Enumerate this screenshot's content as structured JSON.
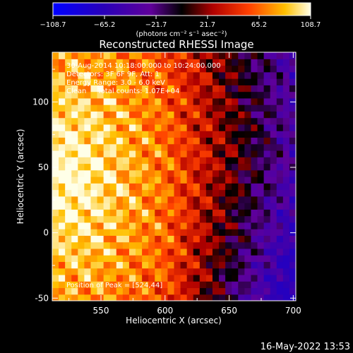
{
  "chart_data": {
    "type": "heatmap",
    "title": "Reconstructed RHESSI Image",
    "xlabel": "Heliocentric X (arcsec)",
    "ylabel": "Heliocentric Y (arcsec)",
    "xlim": [
      512,
      702
    ],
    "ylim": [
      -52,
      138
    ],
    "x_ticks": [
      550,
      600,
      650,
      700
    ],
    "y_ticks": [
      -50,
      0,
      50,
      100
    ],
    "colorbar": {
      "min": -108.7,
      "max": 108.7,
      "tick_values": [
        -108.7,
        -65.2,
        -21.7,
        21.7,
        65.2,
        108.7
      ],
      "tick_labels": [
        "−108.7",
        "−65.2",
        "−21.7",
        "21.7",
        "65.2",
        "108.7"
      ],
      "units": "(photons cm⁻² s⁻¹ asec⁻²)"
    },
    "annotations": [
      "30-Aug-2014 10:18:00.000 to 10:24:00.000",
      "Detectors: 3F 6F 9F, Att: 1",
      "Energy Range: 3.0 - 6.0 keV",
      "Clean     Total counts: 1.07E+04"
    ],
    "peak_label": "Position of Peak = [524,44]",
    "peak": {
      "x": 524,
      "y": 44
    },
    "grid": false
  },
  "footer": {
    "date": "16-May-2022 13:53"
  }
}
